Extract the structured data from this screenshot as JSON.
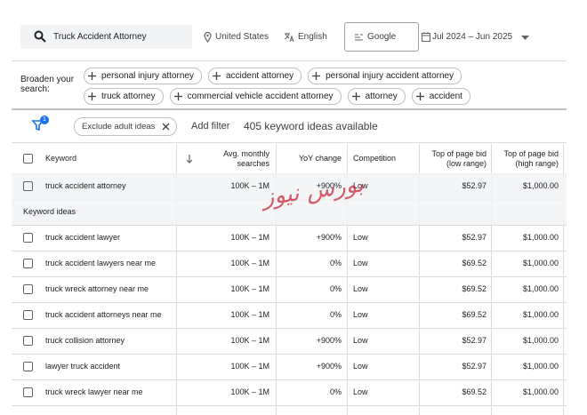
{
  "search": {
    "query": "Truck Accident Attorney",
    "location": "United States",
    "language": "English",
    "network": "Google",
    "date_range": "Jul 2024 – Jun 2025"
  },
  "broaden": {
    "label": "Broaden your search:",
    "chips": [
      "personal injury attorney",
      "accident attorney",
      "personal injury accident attorney",
      "truck attorney",
      "commercial vehicle accident attorney",
      "attorney",
      "accident"
    ]
  },
  "filters": {
    "badge": "1",
    "chip": "Exclude adult ideas",
    "add_filter": "Add filter",
    "count": "405 keyword ideas available"
  },
  "watermark": "بورس نیوز",
  "table": {
    "headers": [
      "Keyword",
      "Avg. monthly searches",
      "YoY change",
      "Competition",
      "Top of page bid (low range)",
      "Top of page bid (high range)"
    ],
    "searched_row": [
      "truck accident attorney",
      "100K – 1M",
      "+900%",
      "Low",
      "$52.97",
      "$1,000.00"
    ],
    "section_label": "Keyword ideas",
    "rows": [
      [
        "truck accident lawyer",
        "100K – 1M",
        "+900%",
        "Low",
        "$52.97",
        "$1,000.00"
      ],
      [
        "truck accident lawyers near me",
        "100K – 1M",
        "0%",
        "Low",
        "$69.52",
        "$1,000.00"
      ],
      [
        "truck wreck attorney near me",
        "100K – 1M",
        "0%",
        "Low",
        "$69.52",
        "$1,000.00"
      ],
      [
        "truck accident attorneys near me",
        "100K – 1M",
        "0%",
        "Low",
        "$69.52",
        "$1,000.00"
      ],
      [
        "truck collision attorney",
        "100K – 1M",
        "+900%",
        "Low",
        "$52.97",
        "$1,000.00"
      ],
      [
        "lawyer truck accident",
        "100K – 1M",
        "+900%",
        "Low",
        "$52.97",
        "$1,000.00"
      ],
      [
        "truck wreck lawyer near me",
        "100K – 1M",
        "0%",
        "Low",
        "$69.52",
        "$1,000.00"
      ]
    ]
  }
}
